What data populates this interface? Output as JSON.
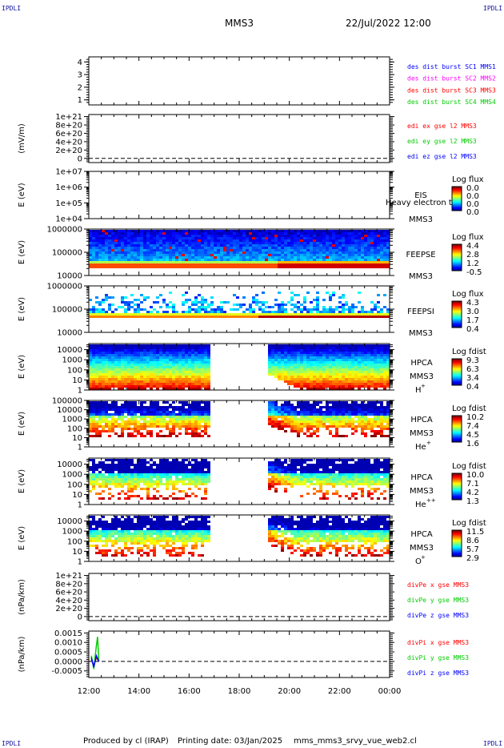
{
  "header": {
    "corner_label": "IPDLI",
    "mission": "MMS3",
    "date_time": "22/Jul/2022 12:00"
  },
  "footer": {
    "produced_by": "Produced by cl (IRAP)",
    "printing_date": "Printing date: 03/Jan/2025",
    "filename": "mms_mms3_srvy_vue_web2.cl"
  },
  "colors": {
    "blue": "#0000ff",
    "magenta": "#ff00ff",
    "red": "#ff0000",
    "green": "#00cc00",
    "dark_blue": "#0000c0"
  },
  "chart_data": [
    {
      "type": "line",
      "panel": "des-dist-burst",
      "yticks": [
        "1",
        "2",
        "3",
        "4"
      ],
      "ylim": [
        0.6,
        4.4
      ],
      "ylabel": "",
      "legend": [
        {
          "text": "des dist burst SC1 MMS1",
          "color": "#0000ff"
        },
        {
          "text": "des dist burst SC2 MMS2",
          "color": "#ff00ff"
        },
        {
          "text": "des dist burst SC3 MMS3",
          "color": "#ff0000"
        },
        {
          "text": "des dist burst SC4 MMS4",
          "color": "#00cc00"
        }
      ],
      "series": []
    },
    {
      "type": "line",
      "panel": "edi-e",
      "yticks": [
        "0",
        "2e+20",
        "4e+20",
        "6e+20",
        "8e+20",
        "1e+21"
      ],
      "ylim": [
        -1e+20,
        1.05e+21
      ],
      "ylabel": "(mV/m)",
      "zero_line": true,
      "legend": [
        {
          "text": "edi ex gse l2 MMS3",
          "color": "#ff0000"
        },
        {
          "text": "edi ey gse l2 MMS3",
          "color": "#00cc00"
        },
        {
          "text": "edi ez gse l2 MMS3",
          "color": "#0000ff"
        }
      ],
      "series": []
    },
    {
      "type": "heatmap",
      "panel": "eis",
      "yticks": [
        "1e+04",
        "1e+05",
        "1e+06",
        "1e+07"
      ],
      "ylim": [
        10000,
        10000000
      ],
      "log": true,
      "ylabel": "E (eV)",
      "labels": [
        "EIS",
        "MMS3"
      ],
      "overlay_text": "Heavy electron to",
      "colorbar": {
        "title": "Log flux",
        "ticks": [
          "0.0",
          "0.0",
          "0.0",
          "0.0"
        ]
      },
      "data_present": false
    },
    {
      "type": "heatmap",
      "panel": "feepse",
      "yticks": [
        "10000",
        "100000",
        "1000000"
      ],
      "ylim": [
        10000,
        1000000
      ],
      "log": true,
      "ylabel": "E (eV)",
      "labels": [
        "FEEPSE",
        "MMS3"
      ],
      "colorbar": {
        "title": "Log flux",
        "ticks": [
          "4.4",
          "2.8",
          "1.2",
          "-0.5"
        ]
      },
      "data_present": true
    },
    {
      "type": "heatmap",
      "panel": "feepsi",
      "yticks": [
        "10000",
        "100000",
        "1000000"
      ],
      "ylim": [
        10000,
        1000000
      ],
      "log": true,
      "ylabel": "E (eV)",
      "labels": [
        "FEEPSI",
        "MMS3"
      ],
      "colorbar": {
        "title": "Log flux",
        "ticks": [
          "4.3",
          "3.0",
          "1.7",
          "0.4"
        ]
      },
      "data_present": true
    },
    {
      "type": "heatmap",
      "panel": "hpca-h",
      "yticks": [
        "1",
        "10",
        "100",
        "1000",
        "10000"
      ],
      "ylim": [
        1,
        40000
      ],
      "log": true,
      "ylabel": "E (eV)",
      "labels": [
        "HPCA",
        "MMS3"
      ],
      "species": "H",
      "species_sup": "+",
      "colorbar": {
        "title": "Log fdist",
        "ticks": [
          "9.3",
          "6.3",
          "3.4",
          "0.4"
        ]
      },
      "data_present": true
    },
    {
      "type": "heatmap",
      "panel": "hpca-he",
      "yticks": [
        "1",
        "10",
        "100",
        "1000",
        "10000",
        "100000"
      ],
      "ylim": [
        1,
        100000
      ],
      "log": true,
      "ylabel": "E (eV)",
      "labels": [
        "HPCA",
        "MMS3"
      ],
      "species": "He",
      "species_sup": "+",
      "colorbar": {
        "title": "Log fdist",
        "ticks": [
          "10.2",
          "7.4",
          "4.5",
          "1.6"
        ]
      },
      "data_present": true
    },
    {
      "type": "heatmap",
      "panel": "hpca-he2",
      "yticks": [
        "1",
        "10",
        "100",
        "1000",
        "10000"
      ],
      "ylim": [
        1,
        40000
      ],
      "log": true,
      "ylabel": "E (eV)",
      "labels": [
        "HPCA",
        "MMS3"
      ],
      "species": "He",
      "species_sup": "++",
      "colorbar": {
        "title": "Log fdist",
        "ticks": [
          "10.0",
          "7.1",
          "4.2",
          "1.3"
        ]
      },
      "data_present": true
    },
    {
      "type": "heatmap",
      "panel": "hpca-o",
      "yticks": [
        "1",
        "10",
        "100",
        "1000",
        "10000"
      ],
      "ylim": [
        1,
        40000
      ],
      "log": true,
      "ylabel": "E (eV)",
      "labels": [
        "HPCA",
        "MMS3"
      ],
      "species": "O",
      "species_sup": "+",
      "colorbar": {
        "title": "Log fdist",
        "ticks": [
          "11.5",
          "8.6",
          "5.7",
          "2.9"
        ]
      },
      "data_present": true
    },
    {
      "type": "line",
      "panel": "divpe",
      "yticks": [
        "0",
        "2e+20",
        "4e+20",
        "6e+20",
        "8e+20",
        "1e+21"
      ],
      "ylim": [
        -1e+20,
        1.05e+21
      ],
      "ylabel": "(nPa/km)",
      "zero_line": true,
      "legend": [
        {
          "text": "divPe x gse MMS3",
          "color": "#ff0000"
        },
        {
          "text": "divPe y gse MMS3",
          "color": "#00cc00"
        },
        {
          "text": "divPe z gse MMS3",
          "color": "#0000ff"
        }
      ],
      "series": []
    },
    {
      "type": "line",
      "panel": "divpi",
      "yticks": [
        "-0.0005",
        "0.0000",
        "0.0005",
        "0.0010",
        "0.0015"
      ],
      "ylim": [
        -0.00085,
        0.0016
      ],
      "ylabel": "(nPa/km)",
      "zero_line": true,
      "legend": [
        {
          "text": "divPi x gse MMS3",
          "color": "#ff0000"
        },
        {
          "text": "divPi y gse MMS3",
          "color": "#00cc00"
        },
        {
          "text": "divPi z gse MMS3",
          "color": "#0000ff"
        }
      ],
      "series": [
        {
          "name": "divPi x gse MMS3",
          "color": "#ff0000",
          "points": [
            [
              12.1,
              0.0001
            ],
            [
              12.2,
              -0.0002
            ],
            [
              12.3,
              0.0002
            ],
            [
              12.4,
              0.0
            ]
          ]
        },
        {
          "name": "divPi y gse MMS3",
          "color": "#00cc00",
          "points": [
            [
              12.1,
              0.0003
            ],
            [
              12.2,
              -0.0004
            ],
            [
              12.3,
              0.0008
            ],
            [
              12.35,
              0.0013
            ],
            [
              12.4,
              0.0
            ]
          ]
        },
        {
          "name": "divPi z gse MMS3",
          "color": "#0000ff",
          "points": [
            [
              12.1,
              0.0002
            ],
            [
              12.2,
              -0.0003
            ],
            [
              12.3,
              0.0003
            ],
            [
              12.4,
              0.0
            ]
          ]
        }
      ]
    }
  ],
  "xaxis": {
    "ticks": [
      "12:00",
      "14:00",
      "16:00",
      "18:00",
      "20:00",
      "22:00",
      "00:00"
    ],
    "xlim": [
      12,
      24
    ]
  }
}
